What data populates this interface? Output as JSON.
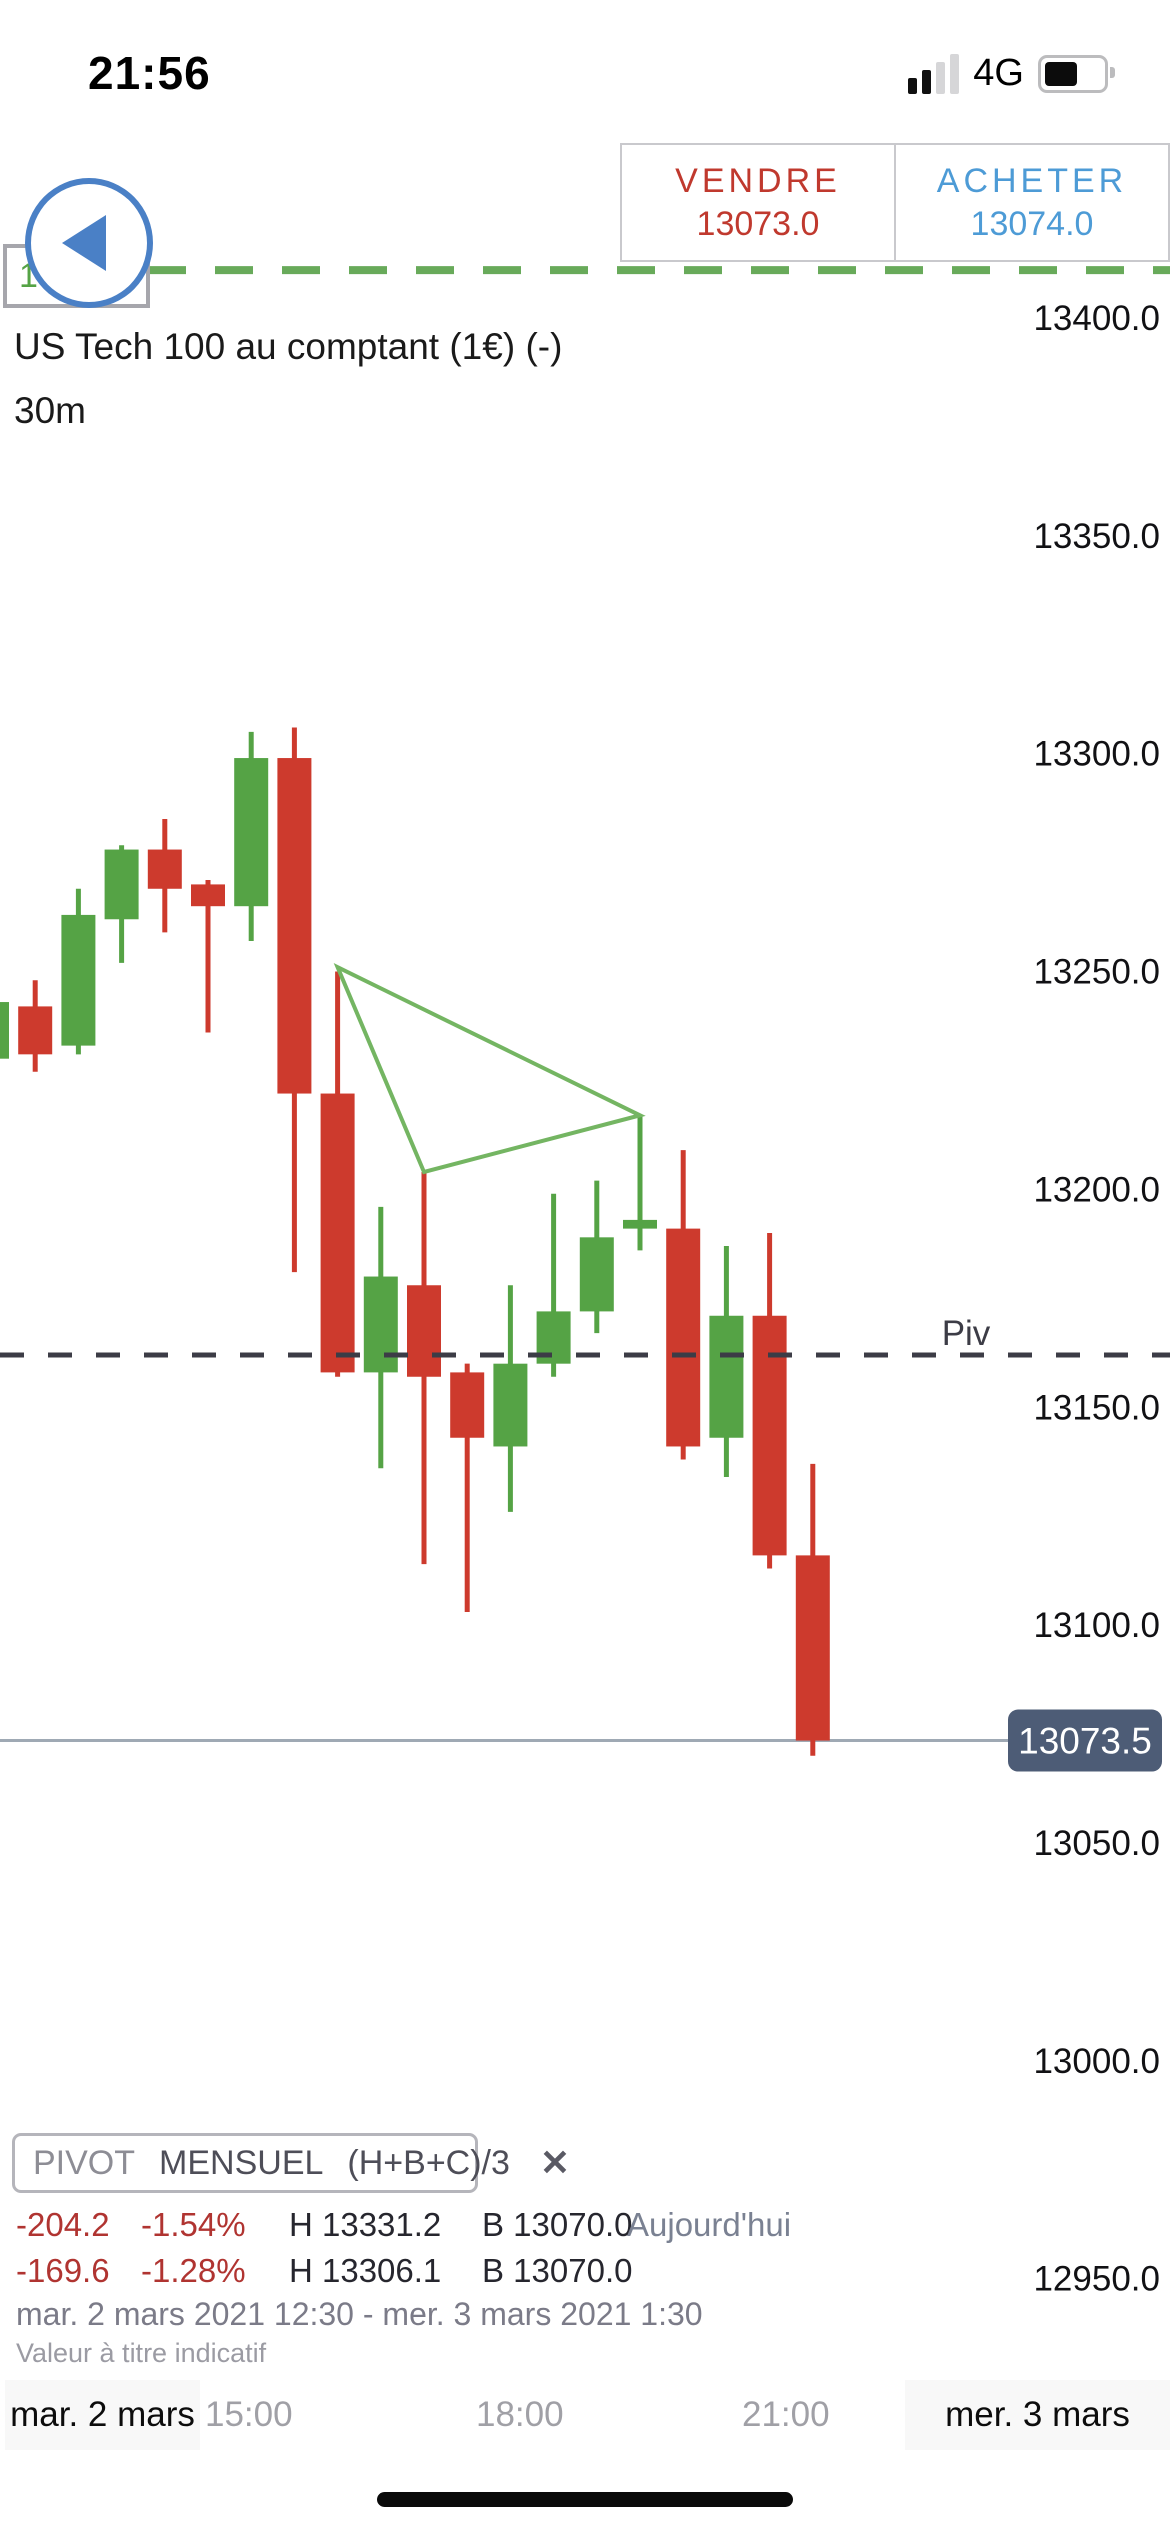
{
  "status_bar": {
    "time": "21:56",
    "network": "4G"
  },
  "trade_buttons": {
    "sell_label": "VENDRE",
    "sell_price": "13073.0",
    "buy_label": "ACHETER",
    "buy_price": "13074.0",
    "sell_color": "#c0392e",
    "buy_color": "#4d9bd6"
  },
  "level_label": {
    "text": "13"
  },
  "header": {
    "title": "US Tech 100 au comptant (1€) (-)",
    "interval": "30m"
  },
  "chart_data": {
    "type": "candlestick",
    "title": "US Tech 100 au comptant (1€) (-)",
    "interval": "30m",
    "ylim": [
      12950,
      13400
    ],
    "y_ticks": [
      "13400.0",
      "13350.0",
      "13300.0",
      "13250.0",
      "13200.0",
      "13150.0",
      "13100.0",
      "13050.0",
      "13000.0",
      "12950.0"
    ],
    "x_tick_labels": [
      "mar. 2 mars",
      "15:00",
      "18:00",
      "21:00",
      "mer. 3 mars"
    ],
    "grid": "off",
    "up_color": "#55a345",
    "down_color": "#cd3a2d",
    "candles_ohlc": [
      [
        13230,
        13245,
        13228,
        13243
      ],
      [
        13242,
        13248,
        13227,
        13231
      ],
      [
        13233,
        13269,
        13231,
        13263
      ],
      [
        13262,
        13279,
        13252,
        13278
      ],
      [
        13278,
        13285,
        13259,
        13269
      ],
      [
        13270,
        13271,
        13236,
        13265
      ],
      [
        13265,
        13305,
        13257,
        13299
      ],
      [
        13299,
        13306,
        13181,
        13222
      ],
      [
        13222,
        13250,
        13157,
        13158
      ],
      [
        13158,
        13196,
        13136,
        13180
      ],
      [
        13178,
        13204,
        13114,
        13157
      ],
      [
        13158,
        13160,
        13103,
        13143
      ],
      [
        13141,
        13178,
        13126,
        13160
      ],
      [
        13160,
        13199,
        13157,
        13172
      ],
      [
        13172,
        13202,
        13167,
        13189
      ],
      [
        13191,
        13217,
        13186,
        13193
      ],
      [
        13191,
        13209,
        13138,
        13141
      ],
      [
        13143,
        13187,
        13134,
        13171
      ],
      [
        13171,
        13190,
        13113,
        13116
      ],
      [
        13116,
        13137,
        13070,
        13073.5
      ]
    ],
    "pivot_line": {
      "label": "Piv",
      "price": 13162,
      "color": "#3c3c46",
      "style": "dashed"
    },
    "current_price": {
      "label": "13073.5",
      "price": 13073.5,
      "line_color": "#9fa9b4",
      "tag_color": "#4d5c76"
    },
    "top_level": {
      "price": 13411,
      "color": "#68aa5a",
      "style": "dashed"
    },
    "triangle_annotation": {
      "color": "#74b562",
      "anchors": [
        {
          "candle": 8,
          "price": 13251
        },
        {
          "candle": 10,
          "price": 13204
        },
        {
          "candle": 15,
          "price": 13217
        }
      ]
    }
  },
  "pivot_panel": {
    "name_dim": "PIVOT",
    "name_main": "MENSUEL",
    "formula": "(H+B+C)/3",
    "close_icon": "✕"
  },
  "stats": {
    "rows": [
      {
        "change": "-204.2",
        "pct": "-1.54%",
        "high": "H 13331.2",
        "low": "B 13070.0",
        "period": "Aujourd'hui"
      },
      {
        "change": "-169.6",
        "pct": "-1.28%",
        "high": "H 13306.1",
        "low": "B 13070.0",
        "period": ""
      }
    ],
    "range": "mar. 2 mars 2021 12:30 - mer. 3 mars 2021 1:30",
    "disclaimer": "Valeur à titre indicatif"
  },
  "x_axis": {
    "labels": [
      {
        "text": "mar. 2 mars"
      },
      {
        "text": "15:00"
      },
      {
        "text": "18:00"
      },
      {
        "text": "21:00"
      },
      {
        "text": "mer. 3 mars"
      }
    ]
  }
}
